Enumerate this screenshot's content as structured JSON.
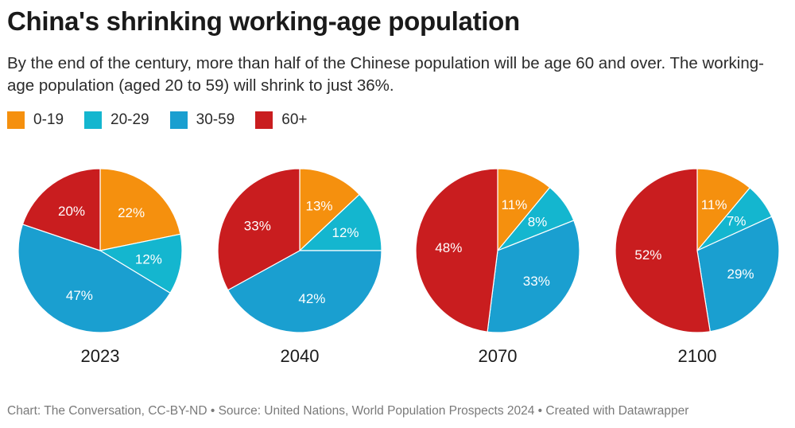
{
  "title": "China's shrinking working-age population",
  "subtitle": "By the end of the century, more than half of the Chinese population will be age 60 and over. The working-age population (aged 20 to 59) will shrink to just 36%.",
  "footer": "Chart: The Conversation, CC-BY-ND • Source: United Nations, World Population Prospects 2024 • Created with Datawrapper",
  "legend": [
    {
      "label": "0-19",
      "color": "#f5900e"
    },
    {
      "label": "20-29",
      "color": "#14b6cf"
    },
    {
      "label": "30-59",
      "color": "#1a9fd0"
    },
    {
      "label": "60+",
      "color": "#c91d1f"
    }
  ],
  "chart_data": {
    "type": "pie",
    "categories": [
      "0-19",
      "20-29",
      "30-59",
      "60+"
    ],
    "colors": [
      "#f5900e",
      "#14b6cf",
      "#1a9fd0",
      "#c91d1f"
    ],
    "legend_position": "top-left",
    "series": [
      {
        "name": "2023",
        "values": [
          22,
          12,
          47,
          20
        ],
        "labels": [
          "22%",
          "12%",
          "47%",
          "20%"
        ]
      },
      {
        "name": "2040",
        "values": [
          13,
          12,
          42,
          33
        ],
        "labels": [
          "13%",
          "12%",
          "42%",
          "33%"
        ]
      },
      {
        "name": "2070",
        "values": [
          11,
          8,
          33,
          48
        ],
        "labels": [
          "11%",
          "8%",
          "33%",
          "48%"
        ]
      },
      {
        "name": "2100",
        "values": [
          11,
          7,
          29,
          52
        ],
        "labels": [
          "11%",
          "7%",
          "29%",
          "52%"
        ]
      }
    ]
  }
}
